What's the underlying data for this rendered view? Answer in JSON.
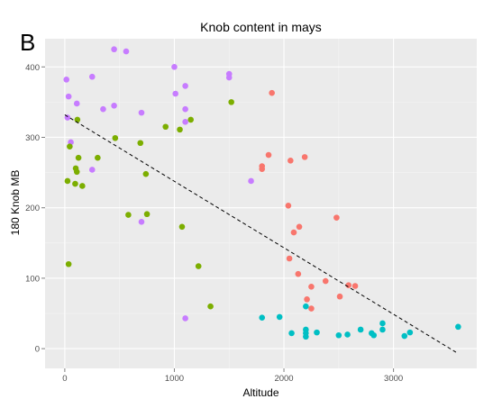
{
  "figure": {
    "panel_letter": "B"
  },
  "chart_data": {
    "type": "scatter",
    "title": "Knob content in mays",
    "xlabel": "Altitude",
    "ylabel": "180 Knob MB",
    "xlim": [
      -180,
      3760
    ],
    "ylim": [
      -28,
      440
    ],
    "xticks": [
      0,
      1000,
      2000,
      3000
    ],
    "yticks": [
      0,
      100,
      200,
      300,
      400
    ],
    "grid": true,
    "legend": "none",
    "colors": {
      "panel_background": "#ebebeb",
      "grid_major": "#ffffff",
      "grid_minor": "#f5f5f5",
      "trend_line": "#000000"
    },
    "trend_line": {
      "style": "dashed",
      "x": [
        0,
        3570
      ],
      "y": [
        332,
        -5
      ]
    },
    "series": [
      {
        "color": "#c77cff",
        "points": [
          [
            15,
            382
          ],
          [
            25,
            328
          ],
          [
            35,
            358
          ],
          [
            55,
            293
          ],
          [
            110,
            348
          ],
          [
            250,
            386
          ],
          [
            250,
            254
          ],
          [
            350,
            340
          ],
          [
            450,
            425
          ],
          [
            450,
            345
          ],
          [
            560,
            422
          ],
          [
            700,
            335
          ],
          [
            700,
            180
          ],
          [
            1000,
            400
          ],
          [
            1010,
            362
          ],
          [
            1100,
            373
          ],
          [
            1100,
            340
          ],
          [
            1100,
            322
          ],
          [
            1100,
            43
          ],
          [
            1500,
            390
          ],
          [
            1500,
            385
          ],
          [
            1700,
            238
          ]
        ]
      },
      {
        "color": "#7cae00",
        "points": [
          [
            25,
            238
          ],
          [
            35,
            120
          ],
          [
            45,
            287
          ],
          [
            95,
            234
          ],
          [
            100,
            256
          ],
          [
            110,
            251
          ],
          [
            115,
            325
          ],
          [
            125,
            271
          ],
          [
            160,
            231
          ],
          [
            300,
            271
          ],
          [
            460,
            299
          ],
          [
            580,
            190
          ],
          [
            690,
            292
          ],
          [
            740,
            248
          ],
          [
            750,
            191
          ],
          [
            920,
            315
          ],
          [
            1050,
            311
          ],
          [
            1070,
            173
          ],
          [
            1150,
            325
          ],
          [
            1220,
            117
          ],
          [
            1330,
            60
          ],
          [
            1520,
            350
          ]
        ]
      },
      {
        "color": "#f8766d",
        "points": [
          [
            1800,
            259
          ],
          [
            1800,
            255
          ],
          [
            1860,
            275
          ],
          [
            1890,
            363
          ],
          [
            2040,
            203
          ],
          [
            2050,
            128
          ],
          [
            2060,
            267
          ],
          [
            2090,
            165
          ],
          [
            2130,
            106
          ],
          [
            2140,
            173
          ],
          [
            2190,
            272
          ],
          [
            2210,
            70
          ],
          [
            2250,
            57
          ],
          [
            2250,
            88
          ],
          [
            2380,
            96
          ],
          [
            2480,
            186
          ],
          [
            2510,
            74
          ],
          [
            2590,
            90
          ],
          [
            2650,
            89
          ]
        ]
      },
      {
        "color": "#00bfc4",
        "points": [
          [
            1800,
            44
          ],
          [
            1960,
            45
          ],
          [
            2070,
            22
          ],
          [
            2200,
            60
          ],
          [
            2200,
            27
          ],
          [
            2200,
            22
          ],
          [
            2200,
            17
          ],
          [
            2300,
            23
          ],
          [
            2500,
            19
          ],
          [
            2580,
            20
          ],
          [
            2700,
            27
          ],
          [
            2800,
            22
          ],
          [
            2820,
            19
          ],
          [
            2900,
            27
          ],
          [
            2900,
            36
          ],
          [
            3100,
            18
          ],
          [
            3150,
            23
          ],
          [
            3590,
            31
          ]
        ]
      }
    ]
  }
}
